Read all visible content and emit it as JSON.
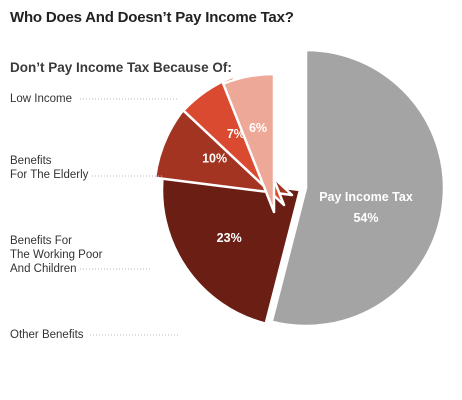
{
  "chart_data": {
    "type": "pie",
    "title": "Who Does And Doesn’t Pay Income Tax?",
    "subtitle": "Don’t Pay Income Tax Because Of:",
    "slices": [
      {
        "label": "Pay Income Tax",
        "value": 54,
        "value_label": "54%",
        "color": "#a4a4a4",
        "exploded": false
      },
      {
        "label": "Low Income",
        "value": 23,
        "value_label": "23%",
        "color": "#6b1f14",
        "exploded": true
      },
      {
        "label": "Benefits For The Elderly",
        "label_lines": [
          "Benefits",
          "For The Elderly"
        ],
        "value": 10,
        "value_label": "10%",
        "color": "#a23421",
        "exploded": true
      },
      {
        "label": "Benefits For The Working Poor And Children",
        "label_lines": [
          "Benefits For",
          "The Working Poor",
          "And Children"
        ],
        "value": 7,
        "value_label": "7%",
        "color": "#d94a30",
        "exploded": true
      },
      {
        "label": "Other Benefits",
        "label_lines": [
          "Other Benefits"
        ],
        "value": 6,
        "value_label": "6%",
        "color": "#eea898",
        "exploded": true
      }
    ]
  }
}
